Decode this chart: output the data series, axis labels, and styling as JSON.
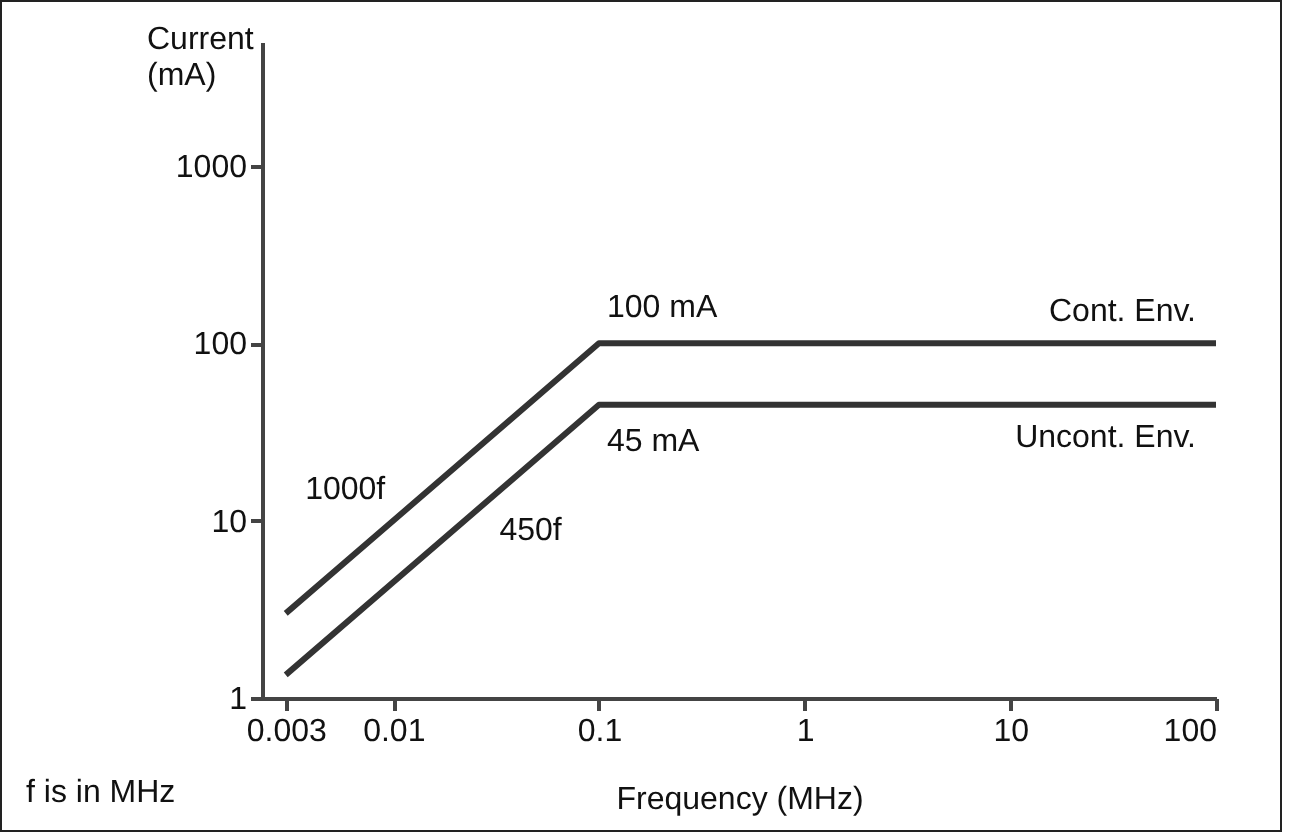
{
  "chart_data": {
    "type": "line",
    "xlabel": "Frequency (MHz)",
    "ylabel": "Current (mA)",
    "log": "xy",
    "grid": false,
    "legend": false,
    "marker": "none",
    "line_style": "solid",
    "xlim": [
      0.0023,
      100
    ],
    "xticks": [
      0.003,
      0.01,
      0.1,
      1,
      10,
      100
    ],
    "ylim": [
      1,
      5000
    ],
    "yticks": [
      1,
      10,
      100,
      1000
    ],
    "series": [
      {
        "name": "Cont. Env.",
        "color": "#333333",
        "x": [
          0.003,
          0.1,
          100
        ],
        "values": [
          3,
          100,
          100
        ]
      },
      {
        "name": "Uncont. Env.",
        "color": "#333333",
        "x": [
          0.003,
          0.1,
          100
        ],
        "values": [
          1.35,
          45,
          45
        ]
      }
    ],
    "annotations": [
      {
        "text": "1000f",
        "x": 0.01,
        "y": 10
      },
      {
        "text": "450f",
        "x": 0.03,
        "y": 13.5
      },
      {
        "text": "100 mA",
        "x": 0.1,
        "y": 100
      },
      {
        "text": "45 mA",
        "x": 0.1,
        "y": 45
      },
      "f is in MHz"
    ]
  }
}
